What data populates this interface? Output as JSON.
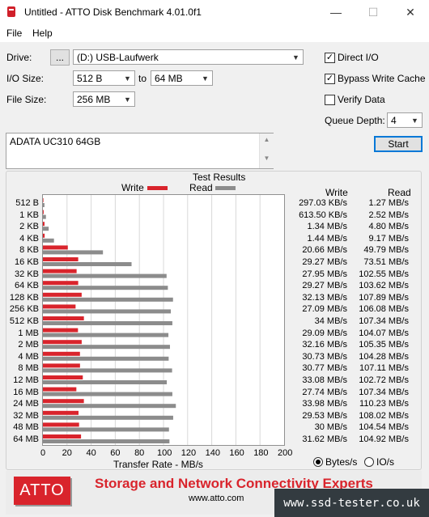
{
  "window": {
    "title": "Untitled - ATTO Disk Benchmark 4.01.0f1",
    "min_glyph": "—",
    "max_glyph": "☐",
    "close_glyph": "✕"
  },
  "menu": {
    "file": "File",
    "help": "Help"
  },
  "controls": {
    "drive_label": "Drive:",
    "browse_label": "...",
    "drive_value": "(D:) USB-Laufwerk",
    "io_size_label": "I/O Size:",
    "io_from": "512 B",
    "to_label": "to",
    "io_to": "64 MB",
    "file_size_label": "File Size:",
    "file_size": "256 MB",
    "direct_io_label": "Direct I/O",
    "direct_io_checked": true,
    "bypass_label": "Bypass Write Cache",
    "bypass_checked": true,
    "verify_label": "Verify Data",
    "verify_checked": false,
    "queue_label": "Queue Depth:",
    "queue_value": "4",
    "start_label": "Start",
    "description": "ADATA UC310 64GB"
  },
  "results": {
    "title": "Test Results",
    "write_legend": "Write",
    "read_legend": "Read",
    "write_col": "Write",
    "read_col": "Read",
    "xlabel": "Transfer Rate - MB/s",
    "unit_bytes": "Bytes/s",
    "unit_io": "IO/s",
    "rows": [
      {
        "size": "512 B",
        "write": "297.03 KB/s",
        "read": "1.27 MB/s"
      },
      {
        "size": "1 KB",
        "write": "613.50 KB/s",
        "read": "2.52 MB/s"
      },
      {
        "size": "2 KB",
        "write": "1.34 MB/s",
        "read": "4.80 MB/s"
      },
      {
        "size": "4 KB",
        "write": "1.44 MB/s",
        "read": "9.17 MB/s"
      },
      {
        "size": "8 KB",
        "write": "20.66 MB/s",
        "read": "49.79 MB/s"
      },
      {
        "size": "16 KB",
        "write": "29.27 MB/s",
        "read": "73.51 MB/s"
      },
      {
        "size": "32 KB",
        "write": "27.95 MB/s",
        "read": "102.55 MB/s"
      },
      {
        "size": "64 KB",
        "write": "29.27 MB/s",
        "read": "103.62 MB/s"
      },
      {
        "size": "128 KB",
        "write": "32.13 MB/s",
        "read": "107.89 MB/s"
      },
      {
        "size": "256 KB",
        "write": "27.09 MB/s",
        "read": "106.08 MB/s"
      },
      {
        "size": "512 KB",
        "write": "34 MB/s",
        "read": "107.34 MB/s"
      },
      {
        "size": "1 MB",
        "write": "29.09 MB/s",
        "read": "104.07 MB/s"
      },
      {
        "size": "2 MB",
        "write": "32.16 MB/s",
        "read": "105.35 MB/s"
      },
      {
        "size": "4 MB",
        "write": "30.73 MB/s",
        "read": "104.28 MB/s"
      },
      {
        "size": "8 MB",
        "write": "30.77 MB/s",
        "read": "107.11 MB/s"
      },
      {
        "size": "12 MB",
        "write": "33.08 MB/s",
        "read": "102.72 MB/s"
      },
      {
        "size": "16 MB",
        "write": "27.74 MB/s",
        "read": "107.34 MB/s"
      },
      {
        "size": "24 MB",
        "write": "33.98 MB/s",
        "read": "110.23 MB/s"
      },
      {
        "size": "32 MB",
        "write": "29.53 MB/s",
        "read": "108.02 MB/s"
      },
      {
        "size": "48 MB",
        "write": "30 MB/s",
        "read": "104.54 MB/s"
      },
      {
        "size": "64 MB",
        "write": "31.62 MB/s",
        "read": "104.92 MB/s"
      }
    ]
  },
  "chart_data": {
    "type": "bar",
    "orientation": "horizontal",
    "categories": [
      "512 B",
      "1 KB",
      "2 KB",
      "4 KB",
      "8 KB",
      "16 KB",
      "32 KB",
      "64 KB",
      "128 KB",
      "256 KB",
      "512 KB",
      "1 MB",
      "2 MB",
      "4 MB",
      "8 MB",
      "12 MB",
      "16 MB",
      "24 MB",
      "32 MB",
      "48 MB",
      "64 MB"
    ],
    "series": [
      {
        "name": "Write",
        "color": "#d9242c",
        "values": [
          0.297,
          0.614,
          1.34,
          1.44,
          20.66,
          29.27,
          27.95,
          29.27,
          32.13,
          27.09,
          34,
          29.09,
          32.16,
          30.73,
          30.77,
          33.08,
          27.74,
          33.98,
          29.53,
          30,
          31.62
        ]
      },
      {
        "name": "Read",
        "color": "#8c8c8c",
        "values": [
          1.27,
          2.52,
          4.8,
          9.17,
          49.79,
          73.51,
          102.55,
          103.62,
          107.89,
          106.08,
          107.34,
          104.07,
          105.35,
          104.28,
          107.11,
          102.72,
          107.34,
          110.23,
          108.02,
          104.54,
          104.92
        ]
      }
    ],
    "xlim": [
      0,
      200
    ],
    "xticks": [
      "0",
      "20",
      "40",
      "60",
      "80",
      "100",
      "120",
      "140",
      "160",
      "180",
      "200"
    ],
    "xlabel": "Transfer Rate - MB/s",
    "grid": true
  },
  "banner": {
    "logo": "ATTO",
    "tagline": "Storage and Network Connectivity Experts",
    "url": "www.atto.com"
  },
  "watermark": "www.ssd-tester.co.uk"
}
